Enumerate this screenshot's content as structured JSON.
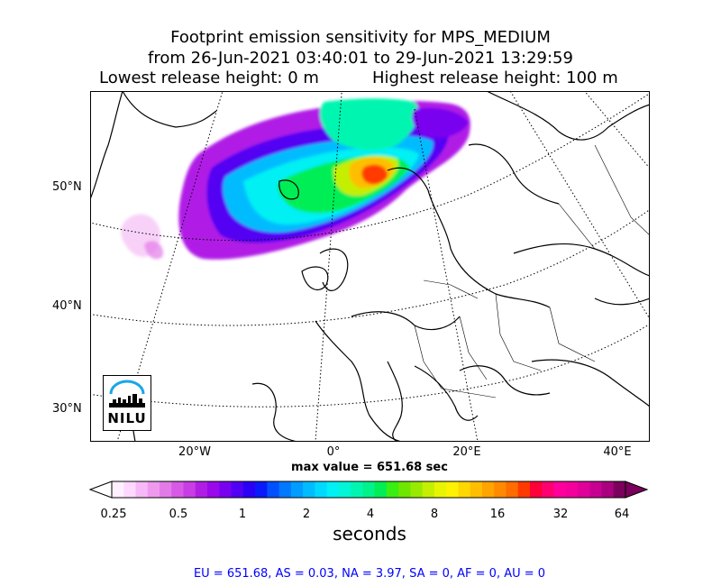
{
  "title": {
    "line1": "Footprint emission sensitivity for MPS_MEDIUM",
    "line2": "from 26-Jun-2021 03:40:01 to 29-Jun-2021 13:29:59",
    "line3_left": "Lowest release height: 0 m",
    "line3_right": "Highest release height: 100 m"
  },
  "map": {
    "lat_labels": [
      "50°N",
      "40°N",
      "30°N"
    ],
    "lon_labels": [
      "20°W",
      "0°",
      "20°E",
      "40°E"
    ]
  },
  "max_value_text": "max value = 651.68 sec",
  "colorbar": {
    "ticks": [
      "0.25",
      "0.5",
      "1",
      "2",
      "4",
      "8",
      "16",
      "32",
      "64"
    ],
    "units": "seconds",
    "colors": [
      "#fff0ff",
      "#ffd8ff",
      "#f7b8f7",
      "#ee99ee",
      "#e27be8",
      "#d65ae5",
      "#c93de4",
      "#b01ee6",
      "#9a09ec",
      "#7a00f0",
      "#5200f3",
      "#2a00f6",
      "#0a1afa",
      "#0050ff",
      "#0078ff",
      "#009cff",
      "#00bcff",
      "#00d9ff",
      "#00f0f4",
      "#00f6d6",
      "#00f6b0",
      "#00f28a",
      "#00ee55",
      "#3aee12",
      "#6ee600",
      "#98ea00",
      "#c4ef00",
      "#e9f500",
      "#fff200",
      "#ffd800",
      "#ffbe00",
      "#ffa400",
      "#ff8a00",
      "#ff6c00",
      "#ff3a00",
      "#ff0038",
      "#ff0070",
      "#ff009c",
      "#f4009c",
      "#e0009a",
      "#c80092",
      "#a8007e",
      "#7a005c"
    ]
  },
  "logo": {
    "text": "NILU"
  },
  "footer": "EU = 651.68,  AS = 0.03,  NA = 3.97,  SA = 0,  AF = 0,  AU = 0"
}
